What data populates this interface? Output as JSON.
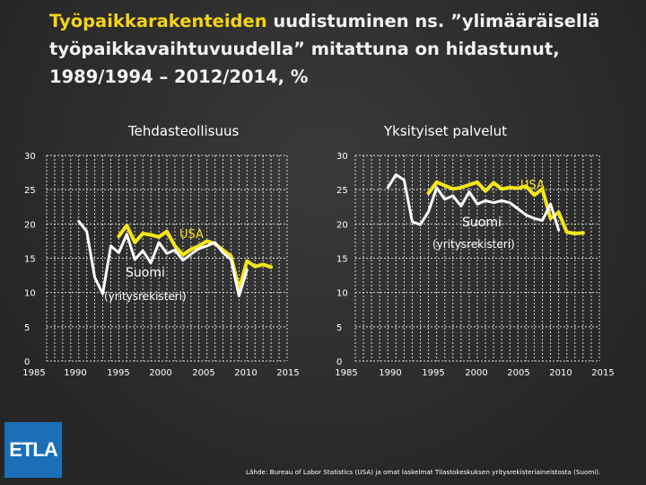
{
  "title": {
    "highlight": "Työpaikkarakenteiden",
    "rest": " uudistuminen ns. ”ylimääräisellä työpaikkavaihtuvuudella” mitattuna on hidastunut, 1989/1994 – 2012/2014, %"
  },
  "logo": "ETLA",
  "source": "Lähde: Bureau of Labor Statistics (USA) ja omat laskelmat Tilastokeskuksen yritysrekisteriaineistosta (Suomi).",
  "colors": {
    "usa": "#f5e61a",
    "suomi": "#ffffff",
    "grid": "#d8d8d8"
  },
  "chart_data": [
    {
      "type": "line",
      "title": "Tehdasteollisuus",
      "xlim": [
        1985,
        2015
      ],
      "ylim": [
        0,
        30
      ],
      "xticks": [
        "1985",
        "1990",
        "1995",
        "2000",
        "2005",
        "2010",
        "2015"
      ],
      "yticks": [
        "0",
        "5",
        "10",
        "15",
        "20",
        "25",
        "30"
      ],
      "series": [
        {
          "name": "USA",
          "x": [
            1994,
            1995,
            1996,
            1997,
            1998,
            1999,
            2000,
            2001,
            2002,
            2003,
            2004,
            2005,
            2006,
            2007,
            2008,
            2009,
            2010,
            2011,
            2012,
            2013
          ],
          "y": [
            18.2,
            19.8,
            17.3,
            18.6,
            18.4,
            18.1,
            18.9,
            16.8,
            15.5,
            16.3,
            16.8,
            17.5,
            17.1,
            16.2,
            15.3,
            10.5,
            14.6,
            13.8,
            14.1,
            13.7
          ]
        },
        {
          "name": "Suomi",
          "name_line2": "(yritysrekisteri)",
          "x": [
            1989,
            1990,
            1991,
            1992,
            1993,
            1994,
            1995,
            1996,
            1997,
            1998,
            1999,
            2000,
            2001,
            2002,
            2003,
            2004,
            2005,
            2006,
            2007,
            2008,
            2009,
            2010
          ],
          "y": [
            20.4,
            18.9,
            12.2,
            9.8,
            16.8,
            15.8,
            18.5,
            14.8,
            16.1,
            14.3,
            17.3,
            15.7,
            16.2,
            14.7,
            15.6,
            16.4,
            16.8,
            17.3,
            15.8,
            14.8,
            9.5,
            13.3
          ]
        }
      ]
    },
    {
      "type": "line",
      "title": "Yksityiset palvelut",
      "xlim": [
        1985,
        2015
      ],
      "ylim": [
        0,
        30
      ],
      "xticks": [
        "1985",
        "1990",
        "1995",
        "2000",
        "2005",
        "2010",
        "2015"
      ],
      "yticks": [
        "0",
        "5",
        "10",
        "15",
        "20",
        "25",
        "30"
      ],
      "series": [
        {
          "name": "USA",
          "x": [
            1994,
            1995,
            1996,
            1997,
            1998,
            1999,
            2000,
            2001,
            2002,
            2003,
            2004,
            2005,
            2006,
            2007,
            2008,
            2009,
            2010,
            2011,
            2012,
            2013
          ],
          "y": [
            24.5,
            26.1,
            25.6,
            25.1,
            25.3,
            25.7,
            26.1,
            24.8,
            26.0,
            25.1,
            25.3,
            25.2,
            25.5,
            24.2,
            25.1,
            20.8,
            21.7,
            18.8,
            18.6,
            18.7
          ]
        },
        {
          "name": "Suomi",
          "name_line2": "(yritysrekisteri)",
          "x": [
            1989,
            1990,
            1991,
            1992,
            1993,
            1994,
            1995,
            1996,
            1997,
            1998,
            1999,
            2000,
            2001,
            2002,
            2003,
            2004,
            2005,
            2006,
            2007,
            2008,
            2009,
            2010
          ],
          "y": [
            25.3,
            27.2,
            26.4,
            20.3,
            19.9,
            21.8,
            25.3,
            23.6,
            24.1,
            22.6,
            24.7,
            22.9,
            23.4,
            23.1,
            23.4,
            23.1,
            22.2,
            21.3,
            20.8,
            20.5,
            22.9,
            19.1
          ]
        }
      ]
    }
  ]
}
